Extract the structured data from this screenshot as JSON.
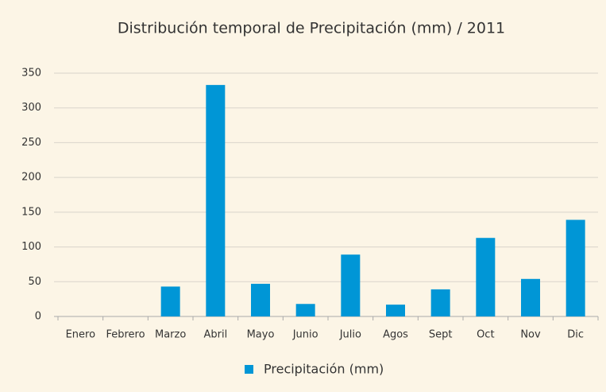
{
  "chart_data": {
    "type": "bar",
    "title": "Distribución temporal de Precipitación (mm) / 2011",
    "categories": [
      "Enero",
      "Febrero",
      "Marzo",
      "Abril",
      "Mayo",
      "Junio",
      "Julio",
      "Agos",
      "Sept",
      "Oct",
      "Nov",
      "Dic"
    ],
    "series": [
      {
        "name": "Precipitación (mm)",
        "color": "#0096d6",
        "values": [
          0,
          0,
          43,
          333,
          47,
          18,
          89,
          17,
          39,
          113,
          54,
          139
        ]
      }
    ],
    "ylim": [
      0,
      350
    ],
    "yticks": [
      0,
      50,
      100,
      150,
      200,
      250,
      300,
      350
    ],
    "grid": true,
    "legend": "bottom"
  }
}
